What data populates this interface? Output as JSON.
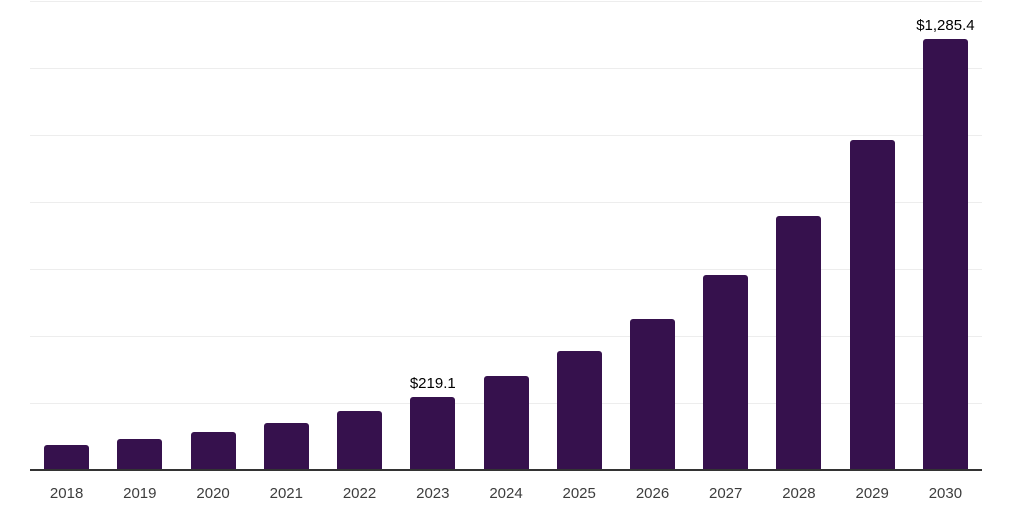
{
  "chart_data": {
    "type": "bar",
    "title": "",
    "xlabel": "",
    "ylabel": "",
    "categories": [
      "2018",
      "2019",
      "2020",
      "2021",
      "2022",
      "2023",
      "2024",
      "2025",
      "2026",
      "2027",
      "2028",
      "2029",
      "2030"
    ],
    "values": [
      74,
      92,
      114,
      141,
      175,
      219.1,
      280,
      355,
      451,
      581,
      757,
      983,
      1285.4
    ],
    "bar_labels": [
      "",
      "",
      "",
      "",
      "",
      "$219.1",
      "",
      "",
      "",
      "",
      "",
      "",
      "$1,285.4"
    ],
    "ylim": [
      0,
      1400
    ],
    "gridline_step": 200,
    "grid": "horizontal",
    "legend": "none",
    "colors": {
      "bar": "#36114d",
      "grid_line": "#ededed",
      "axis_line": "#333333",
      "tick_label": "#3d3d3d",
      "data_label": "#000000",
      "background": "#ffffff"
    }
  }
}
